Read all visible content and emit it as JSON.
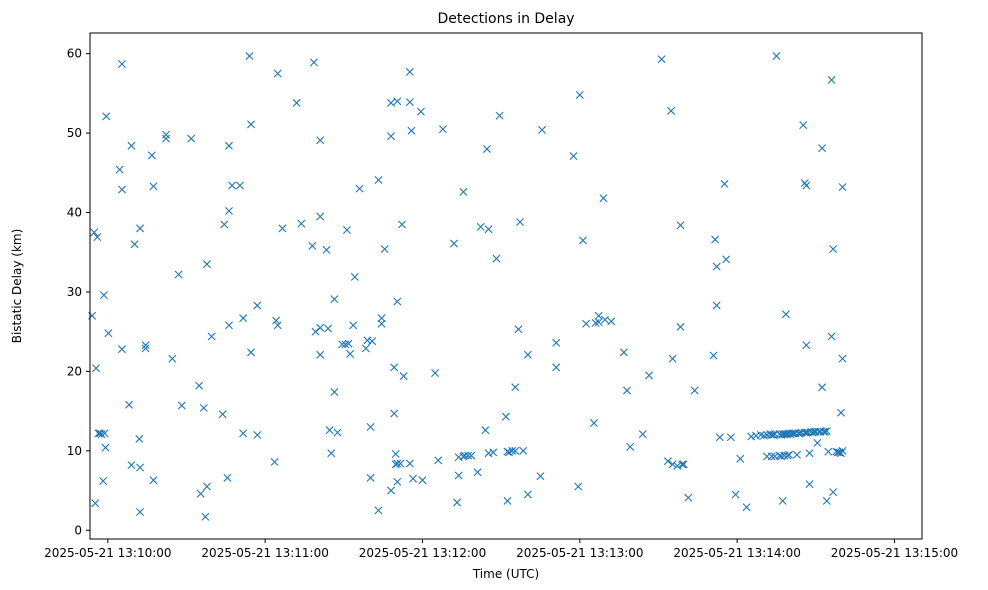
{
  "chart_data": {
    "type": "scatter",
    "title": "Detections in Delay",
    "xlabel": "Time (UTC)",
    "ylabel": "Bistatic Delay (km)",
    "marker": "x",
    "color": "#1f77b4",
    "grid": false,
    "xlim": [
      -6.8,
      310.5
    ],
    "ylim": [
      -1.1,
      62.6
    ],
    "x_unit": "seconds after 2025-05-21 13:10:00",
    "x_ticks": [
      {
        "value": 0,
        "label": "2025-05-21 13:10:00"
      },
      {
        "value": 60,
        "label": "2025-05-21 13:11:00"
      },
      {
        "value": 120,
        "label": "2025-05-21 13:12:00"
      },
      {
        "value": 180,
        "label": "2025-05-21 13:13:00"
      },
      {
        "value": 240,
        "label": "2025-05-21 13:14:00"
      },
      {
        "value": 300,
        "label": "2025-05-21 13:15:00"
      }
    ],
    "y_ticks": [
      0,
      10,
      20,
      30,
      40,
      50,
      60
    ],
    "points": [
      [
        -6.0,
        27.0
      ],
      [
        -5.2,
        37.5
      ],
      [
        -4.8,
        3.4
      ],
      [
        -4.5,
        20.4
      ],
      [
        -4.0,
        36.9
      ],
      [
        -3.6,
        12.2
      ],
      [
        -3.0,
        12.2
      ],
      [
        -2.4,
        12.1
      ],
      [
        -1.8,
        6.2
      ],
      [
        -1.5,
        29.6
      ],
      [
        -1.2,
        12.2
      ],
      [
        -0.9,
        10.4
      ],
      [
        -0.6,
        52.1
      ],
      [
        0.2,
        24.8
      ],
      [
        4.5,
        45.4
      ],
      [
        5.4,
        58.7
      ],
      [
        5.4,
        42.9
      ],
      [
        5.4,
        22.8
      ],
      [
        8.1,
        15.8
      ],
      [
        9.0,
        48.4
      ],
      [
        9.0,
        8.2
      ],
      [
        10.2,
        36.0
      ],
      [
        12.0,
        11.5
      ],
      [
        12.3,
        38.0
      ],
      [
        12.3,
        7.9
      ],
      [
        12.3,
        2.3
      ],
      [
        14.4,
        23.3
      ],
      [
        14.4,
        22.9
      ],
      [
        16.8,
        47.2
      ],
      [
        17.4,
        43.3
      ],
      [
        17.4,
        6.3
      ],
      [
        22.2,
        49.8
      ],
      [
        22.2,
        49.3
      ],
      [
        24.6,
        21.6
      ],
      [
        27.0,
        32.2
      ],
      [
        28.2,
        15.7
      ],
      [
        31.8,
        49.3
      ],
      [
        34.8,
        18.2
      ],
      [
        35.4,
        4.6
      ],
      [
        36.6,
        15.4
      ],
      [
        37.2,
        1.7
      ],
      [
        37.8,
        33.5
      ],
      [
        37.8,
        5.5
      ],
      [
        39.6,
        24.4
      ],
      [
        43.8,
        14.6
      ],
      [
        44.4,
        38.5
      ],
      [
        45.6,
        6.6
      ],
      [
        46.2,
        48.4
      ],
      [
        46.2,
        40.2
      ],
      [
        46.2,
        25.8
      ],
      [
        47.4,
        43.4
      ],
      [
        50.4,
        43.4
      ],
      [
        51.6,
        26.7
      ],
      [
        51.6,
        12.2
      ],
      [
        54.0,
        59.7
      ],
      [
        54.6,
        51.1
      ],
      [
        54.6,
        22.4
      ],
      [
        57.0,
        28.3
      ],
      [
        57.0,
        12.0
      ],
      [
        63.6,
        8.6
      ],
      [
        64.2,
        26.4
      ],
      [
        64.8,
        57.5
      ],
      [
        64.8,
        25.8
      ],
      [
        66.6,
        38.0
      ],
      [
        72.0,
        53.8
      ],
      [
        73.8,
        38.6
      ],
      [
        78.0,
        35.8
      ],
      [
        78.6,
        58.9
      ],
      [
        79.2,
        25.0
      ],
      [
        81.0,
        49.1
      ],
      [
        81.0,
        39.5
      ],
      [
        81.0,
        22.1
      ],
      [
        81.0,
        25.5
      ],
      [
        83.4,
        35.3
      ],
      [
        84.0,
        25.4
      ],
      [
        84.6,
        12.6
      ],
      [
        85.2,
        9.7
      ],
      [
        86.4,
        29.1
      ],
      [
        86.4,
        17.4
      ],
      [
        87.6,
        12.3
      ],
      [
        89.4,
        23.4
      ],
      [
        90.6,
        23.4
      ],
      [
        91.2,
        37.8
      ],
      [
        91.8,
        23.5
      ],
      [
        92.4,
        22.2
      ],
      [
        93.6,
        25.8
      ],
      [
        94.2,
        31.9
      ],
      [
        96.0,
        43.0
      ],
      [
        98.4,
        22.9
      ],
      [
        99.0,
        23.9
      ],
      [
        100.2,
        13.0
      ],
      [
        100.2,
        6.6
      ],
      [
        100.8,
        23.8
      ],
      [
        103.2,
        44.1
      ],
      [
        103.2,
        2.5
      ],
      [
        104.4,
        26.7
      ],
      [
        104.4,
        26.0
      ],
      [
        105.6,
        35.4
      ],
      [
        108.0,
        49.6
      ],
      [
        108.0,
        53.8
      ],
      [
        108.0,
        5.0
      ],
      [
        109.2,
        20.5
      ],
      [
        109.2,
        14.7
      ],
      [
        109.8,
        9.6
      ],
      [
        109.8,
        8.3
      ],
      [
        110.4,
        54.0
      ],
      [
        110.4,
        28.8
      ],
      [
        110.4,
        8.4
      ],
      [
        110.4,
        6.1
      ],
      [
        111.6,
        8.4
      ],
      [
        112.2,
        38.5
      ],
      [
        112.8,
        19.4
      ],
      [
        115.2,
        53.9
      ],
      [
        115.2,
        57.7
      ],
      [
        115.2,
        8.4
      ],
      [
        115.8,
        50.3
      ],
      [
        116.4,
        6.5
      ],
      [
        119.4,
        52.7
      ],
      [
        120.0,
        6.3
      ],
      [
        124.8,
        19.8
      ],
      [
        126.0,
        8.8
      ],
      [
        127.8,
        50.5
      ],
      [
        132.0,
        36.1
      ],
      [
        133.2,
        3.5
      ],
      [
        133.8,
        6.9
      ],
      [
        133.8,
        9.2
      ],
      [
        135.6,
        9.3
      ],
      [
        135.6,
        42.6
      ],
      [
        136.2,
        9.4
      ],
      [
        137.4,
        9.4
      ],
      [
        138.6,
        9.4
      ],
      [
        141.0,
        7.3
      ],
      [
        142.2,
        38.2
      ],
      [
        144.0,
        12.6
      ],
      [
        144.6,
        48.0
      ],
      [
        145.2,
        37.9
      ],
      [
        145.2,
        9.7
      ],
      [
        147.0,
        9.8
      ],
      [
        148.2,
        34.2
      ],
      [
        149.4,
        52.2
      ],
      [
        151.8,
        14.3
      ],
      [
        152.4,
        3.7
      ],
      [
        152.4,
        9.9
      ],
      [
        153.0,
        9.8
      ],
      [
        154.2,
        10.0
      ],
      [
        155.4,
        10.0
      ],
      [
        155.4,
        18.0
      ],
      [
        156.6,
        25.3
      ],
      [
        157.2,
        38.8
      ],
      [
        158.4,
        10.0
      ],
      [
        160.2,
        4.5
      ],
      [
        160.2,
        22.1
      ],
      [
        165.0,
        6.8
      ],
      [
        165.6,
        50.4
      ],
      [
        171.0,
        20.5
      ],
      [
        171.0,
        23.6
      ],
      [
        177.6,
        47.1
      ],
      [
        179.4,
        5.5
      ],
      [
        180.0,
        54.8
      ],
      [
        181.2,
        36.5
      ],
      [
        182.4,
        26.0
      ],
      [
        185.4,
        13.5
      ],
      [
        186.0,
        26.1
      ],
      [
        187.2,
        26.2
      ],
      [
        187.2,
        27.0
      ],
      [
        189.0,
        41.8
      ],
      [
        189.6,
        26.5
      ],
      [
        192.0,
        26.3
      ],
      [
        196.8,
        22.4
      ],
      [
        198.0,
        17.6
      ],
      [
        199.2,
        10.5
      ],
      [
        204.0,
        12.1
      ],
      [
        206.4,
        19.5
      ],
      [
        211.2,
        59.3
      ],
      [
        213.6,
        8.7
      ],
      [
        214.8,
        52.8
      ],
      [
        215.4,
        21.6
      ],
      [
        215.4,
        8.3
      ],
      [
        217.2,
        8.1
      ],
      [
        218.4,
        25.6
      ],
      [
        218.4,
        38.4
      ],
      [
        219.0,
        8.3
      ],
      [
        219.6,
        8.3
      ],
      [
        221.4,
        4.1
      ],
      [
        223.8,
        17.6
      ],
      [
        231.0,
        22.0
      ],
      [
        231.6,
        36.6
      ],
      [
        232.2,
        28.3
      ],
      [
        232.2,
        33.2
      ],
      [
        233.4,
        11.7
      ],
      [
        235.2,
        43.6
      ],
      [
        235.8,
        34.1
      ],
      [
        237.6,
        11.7
      ],
      [
        239.4,
        4.5
      ],
      [
        241.2,
        9.0
      ],
      [
        243.6,
        2.9
      ],
      [
        245.4,
        11.8
      ],
      [
        247.2,
        11.9
      ],
      [
        249.0,
        12.0
      ],
      [
        250.2,
        11.9
      ],
      [
        251.4,
        9.3
      ],
      [
        251.4,
        12.0
      ],
      [
        252.6,
        12.1
      ],
      [
        253.2,
        9.3
      ],
      [
        253.2,
        12.0
      ],
      [
        253.8,
        12.0
      ],
      [
        254.4,
        9.3
      ],
      [
        254.4,
        12.1
      ],
      [
        255.0,
        59.7
      ],
      [
        256.2,
        12.1
      ],
      [
        256.2,
        9.4
      ],
      [
        256.8,
        12.0
      ],
      [
        256.8,
        9.3
      ],
      [
        257.4,
        12.1
      ],
      [
        257.4,
        3.7
      ],
      [
        258.0,
        12.1
      ],
      [
        258.0,
        9.4
      ],
      [
        258.6,
        27.2
      ],
      [
        258.6,
        12.1
      ],
      [
        259.2,
        12.1
      ],
      [
        259.2,
        9.4
      ],
      [
        259.8,
        12.2
      ],
      [
        259.8,
        9.5
      ],
      [
        260.4,
        12.1
      ],
      [
        261.0,
        12.2
      ],
      [
        261.6,
        12.2
      ],
      [
        262.2,
        12.2
      ],
      [
        262.8,
        9.5
      ],
      [
        263.4,
        12.2
      ],
      [
        264.0,
        12.2
      ],
      [
        264.6,
        12.3
      ],
      [
        265.2,
        51.0
      ],
      [
        265.8,
        12.3
      ],
      [
        265.8,
        43.7
      ],
      [
        266.4,
        43.4
      ],
      [
        266.4,
        23.3
      ],
      [
        266.4,
        12.3
      ],
      [
        267.0,
        12.3
      ],
      [
        267.6,
        9.7
      ],
      [
        267.6,
        5.8
      ],
      [
        268.2,
        12.4
      ],
      [
        268.8,
        12.3
      ],
      [
        269.4,
        12.4
      ],
      [
        270.0,
        12.4
      ],
      [
        270.6,
        11.0
      ],
      [
        271.2,
        12.4
      ],
      [
        271.8,
        12.4
      ],
      [
        272.4,
        48.1
      ],
      [
        272.4,
        18.0
      ],
      [
        273.0,
        12.4
      ],
      [
        273.6,
        12.4
      ],
      [
        274.2,
        12.5
      ],
      [
        274.2,
        3.7
      ],
      [
        274.8,
        9.9
      ],
      [
        276.0,
        56.7
      ],
      [
        276.0,
        24.4
      ],
      [
        276.6,
        35.4
      ],
      [
        276.6,
        4.8
      ],
      [
        277.8,
        9.9
      ],
      [
        278.4,
        9.8
      ],
      [
        279.0,
        9.8
      ],
      [
        279.6,
        14.8
      ],
      [
        279.6,
        9.7
      ],
      [
        280.2,
        21.6
      ],
      [
        280.2,
        43.2
      ],
      [
        280.2,
        10.0
      ]
    ]
  }
}
